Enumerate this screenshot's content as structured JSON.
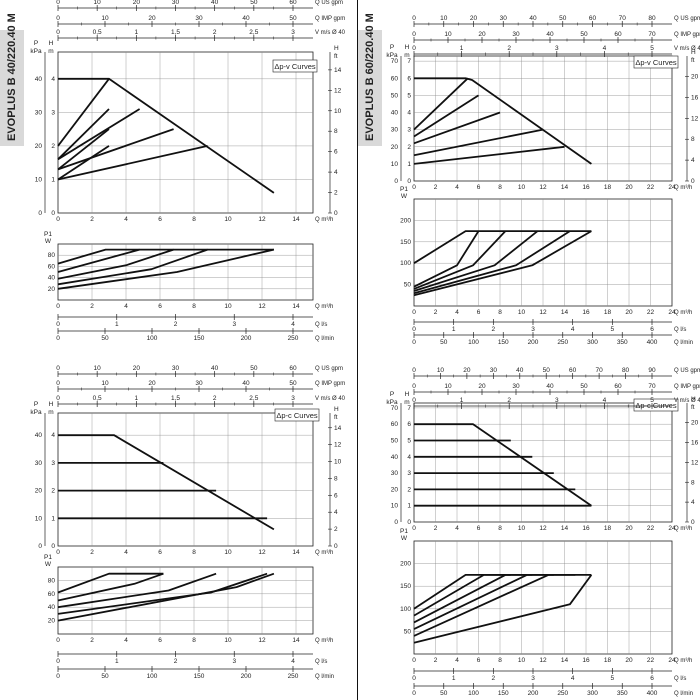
{
  "side_labels": {
    "left": "EVOPLUS B 40/220.40 M",
    "right": "EVOPLUS B 60/220.40 M"
  },
  "chart_data": [
    {
      "type": "line",
      "panel": "top-left",
      "legend": "Δp-v Curves",
      "scales": [
        {
          "label": "Q US gpm",
          "ticks": [
            "0",
            "10",
            "20",
            "30",
            "40",
            "50",
            "60"
          ]
        },
        {
          "label": "Q IMP gpm",
          "ticks": [
            "0",
            "10",
            "20",
            "30",
            "40",
            "50"
          ]
        },
        {
          "label": "V m/s Ø 40",
          "ticks": [
            "0",
            "0,5",
            "1",
            "1,5",
            "2",
            "2,5",
            "3"
          ]
        }
      ],
      "head": {
        "ylabel_left": "P kPa",
        "ylabel_mid": "H m",
        "ylabel_right": "H ft",
        "xlabel": "Q m³/h",
        "x_ticks": [
          "0",
          "2",
          "4",
          "6",
          "8",
          "10",
          "12",
          "14"
        ],
        "y_left_ticks": [
          "0",
          "10",
          "20",
          "30",
          "40"
        ],
        "y_mid_ticks": [
          "0",
          "1",
          "2",
          "3",
          "4"
        ],
        "y_right_ticks": [
          "0",
          "2",
          "4",
          "6",
          "8",
          "10",
          "12",
          "14"
        ],
        "xlim": [
          0,
          15
        ],
        "ylim": [
          0,
          4.8
        ],
        "series": [
          {
            "x": [
              0,
              3.0
            ],
            "y": [
              1.0,
              2.0
            ]
          },
          {
            "x": [
              0,
              3.0
            ],
            "y": [
              1.3,
              2.5
            ]
          },
          {
            "x": [
              0,
              3.0
            ],
            "y": [
              1.6,
              3.1
            ]
          },
          {
            "x": [
              0,
              3.0
            ],
            "y": [
              2.0,
              4.0
            ]
          },
          {
            "x": [
              0,
              8.8
            ],
            "y": [
              1.0,
              2.0
            ]
          },
          {
            "x": [
              0,
              6.8
            ],
            "y": [
              1.3,
              2.5
            ]
          },
          {
            "x": [
              0,
              4.8
            ],
            "y": [
              1.6,
              3.1
            ]
          },
          {
            "x": [
              0,
              3.0,
              12.7
            ],
            "y": [
              4.0,
              4.0,
              0.6
            ]
          }
        ]
      },
      "power": {
        "ylabel": "P1 W",
        "xlabel": "Q m³/h",
        "x_ticks": [
          "0",
          "2",
          "4",
          "6",
          "8",
          "10",
          "12",
          "14"
        ],
        "y_ticks": [
          "20",
          "40",
          "60",
          "80"
        ],
        "xlim": [
          0,
          15
        ],
        "ylim": [
          0,
          100
        ],
        "series": [
          {
            "x": [
              0,
              2.8,
              12.7
            ],
            "y": [
              65,
              90,
              90
            ]
          },
          {
            "x": [
              0,
              3.0,
              4.8
            ],
            "y": [
              50,
              75,
              90
            ]
          },
          {
            "x": [
              0,
              4.0,
              6.8
            ],
            "y": [
              38,
              62,
              90
            ]
          },
          {
            "x": [
              0,
              5.5,
              8.8
            ],
            "y": [
              28,
              55,
              90
            ]
          },
          {
            "x": [
              0,
              7.0,
              12.7
            ],
            "y": [
              20,
              50,
              90
            ]
          }
        ]
      },
      "bottom_scales": [
        {
          "label": "Q l/s",
          "ticks": [
            "0",
            "1",
            "2",
            "3",
            "4"
          ]
        },
        {
          "label": "Q l/min",
          "ticks": [
            "0",
            "50",
            "100",
            "150",
            "200",
            "250"
          ]
        }
      ]
    },
    {
      "type": "line",
      "panel": "top-right",
      "legend": "Δp-v Curves",
      "scales": [
        {
          "label": "Q US gpm",
          "ticks": [
            "0",
            "10",
            "20",
            "30",
            "40",
            "50",
            "60",
            "70",
            "80"
          ]
        },
        {
          "label": "Q IMP gpm",
          "ticks": [
            "0",
            "10",
            "20",
            "30",
            "40",
            "50",
            "60",
            "70"
          ]
        },
        {
          "label": "V m/s Ø 40",
          "ticks": [
            "0",
            "1",
            "2",
            "3",
            "4",
            "5"
          ]
        }
      ],
      "head": {
        "ylabel_left": "P kPa",
        "ylabel_mid": "H m",
        "ylabel_right": "H ft",
        "xlabel": "Q m³/h",
        "x_ticks": [
          "0",
          "2",
          "4",
          "6",
          "8",
          "10",
          "12",
          "14",
          "16",
          "18",
          "20",
          "22",
          "24"
        ],
        "y_left_ticks": [
          "0",
          "10",
          "20",
          "30",
          "40",
          "50",
          "60",
          "70"
        ],
        "y_mid_ticks": [
          "0",
          "1",
          "2",
          "3",
          "4",
          "5",
          "6",
          "7"
        ],
        "y_right_ticks": [
          "0",
          "4",
          "8",
          "12",
          "16",
          "20"
        ],
        "xlim": [
          0,
          24
        ],
        "ylim": [
          0,
          7.3
        ],
        "series": [
          {
            "x": [
              0,
              14
            ],
            "y": [
              1.0,
              2.0
            ]
          },
          {
            "x": [
              0,
              12
            ],
            "y": [
              1.5,
              3.0
            ]
          },
          {
            "x": [
              0,
              8
            ],
            "y": [
              2.2,
              4.0
            ]
          },
          {
            "x": [
              0,
              6
            ],
            "y": [
              2.6,
              5.0
            ]
          },
          {
            "x": [
              0,
              5
            ],
            "y": [
              3.0,
              6.0
            ]
          },
          {
            "x": [
              0,
              4.8,
              5.4,
              16.5
            ],
            "y": [
              6.0,
              6.0,
              5.9,
              1.0
            ]
          }
        ]
      },
      "power": {
        "ylabel": "P1 W",
        "xlabel": "Q m³/h",
        "x_ticks": [
          "0",
          "2",
          "4",
          "6",
          "8",
          "10",
          "12",
          "14",
          "16",
          "18",
          "20",
          "22",
          "24"
        ],
        "y_ticks": [
          "50",
          "100",
          "150",
          "200"
        ],
        "xlim": [
          0,
          24
        ],
        "ylim": [
          0,
          250
        ],
        "series": [
          {
            "x": [
              0,
              4.8,
              16.5
            ],
            "y": [
              100,
              175,
              175
            ]
          },
          {
            "x": [
              0,
              4.0,
              6.0
            ],
            "y": [
              45,
              95,
              175
            ]
          },
          {
            "x": [
              0,
              5.5,
              8.5
            ],
            "y": [
              40,
              95,
              175
            ]
          },
          {
            "x": [
              0,
              7.5,
              11.5
            ],
            "y": [
              35,
              95,
              175
            ]
          },
          {
            "x": [
              0,
              9.5,
              14.5
            ],
            "y": [
              30,
              95,
              175
            ]
          },
          {
            "x": [
              0,
              11,
              16.5
            ],
            "y": [
              25,
              95,
              175
            ]
          }
        ]
      },
      "bottom_scales": [
        {
          "label": "Q l/s",
          "ticks": [
            "0",
            "1",
            "2",
            "3",
            "4",
            "5",
            "6"
          ]
        },
        {
          "label": "Q l/min",
          "ticks": [
            "0",
            "50",
            "100",
            "150",
            "200",
            "250",
            "300",
            "350",
            "400"
          ]
        }
      ]
    },
    {
      "type": "line",
      "panel": "bottom-left",
      "legend": "Δp-c Curves",
      "scales": [
        {
          "label": "Q US gpm",
          "ticks": [
            "0",
            "10",
            "20",
            "30",
            "40",
            "50",
            "60"
          ]
        },
        {
          "label": "Q IMP gpm",
          "ticks": [
            "0",
            "10",
            "20",
            "30",
            "40",
            "50"
          ]
        },
        {
          "label": "V m/s Ø 40",
          "ticks": [
            "0",
            "0,5",
            "1",
            "1,5",
            "2",
            "2,5",
            "3"
          ]
        }
      ],
      "head": {
        "ylabel_left": "P kPa",
        "ylabel_mid": "H m",
        "ylabel_right": "H ft",
        "xlabel": "Q m³/h",
        "x_ticks": [
          "0",
          "2",
          "4",
          "6",
          "8",
          "10",
          "12",
          "14"
        ],
        "y_left_ticks": [
          "0",
          "10",
          "20",
          "30",
          "40"
        ],
        "y_mid_ticks": [
          "0",
          "1",
          "2",
          "3",
          "4"
        ],
        "y_right_ticks": [
          "0",
          "2",
          "4",
          "6",
          "8",
          "10",
          "12",
          "14"
        ],
        "xlim": [
          0,
          15
        ],
        "ylim": [
          0,
          4.8
        ],
        "series": [
          {
            "x": [
              0,
              12.3
            ],
            "y": [
              1.0,
              1.0
            ]
          },
          {
            "x": [
              0,
              9.3
            ],
            "y": [
              2.0,
              2.0
            ]
          },
          {
            "x": [
              0,
              6.2
            ],
            "y": [
              3.0,
              3.0
            ]
          },
          {
            "x": [
              0,
              3.3,
              12.7
            ],
            "y": [
              4.0,
              4.0,
              0.6
            ]
          }
        ]
      },
      "power": {
        "ylabel": "P1 W",
        "xlabel": "Q m³/h",
        "x_ticks": [
          "0",
          "2",
          "4",
          "6",
          "8",
          "10",
          "12",
          "14"
        ],
        "y_ticks": [
          "20",
          "40",
          "60",
          "80"
        ],
        "xlim": [
          0,
          15
        ],
        "ylim": [
          0,
          100
        ],
        "series": [
          {
            "x": [
              0,
              3.0,
              6.2
            ],
            "y": [
              62,
              90,
              90
            ]
          },
          {
            "x": [
              0,
              4.5,
              6.2
            ],
            "y": [
              50,
              75,
              90
            ]
          },
          {
            "x": [
              0,
              6.5,
              9.3
            ],
            "y": [
              40,
              65,
              90
            ]
          },
          {
            "x": [
              0,
              9.0,
              12.3
            ],
            "y": [
              30,
              62,
              90
            ]
          },
          {
            "x": [
              0,
              10.5,
              12.7
            ],
            "y": [
              20,
              70,
              90
            ]
          }
        ]
      },
      "bottom_scales": [
        {
          "label": "Q l/s",
          "ticks": [
            "0",
            "1",
            "2",
            "3",
            "4"
          ]
        },
        {
          "label": "Q l/min",
          "ticks": [
            "0",
            "50",
            "100",
            "150",
            "200",
            "250"
          ]
        }
      ]
    },
    {
      "type": "line",
      "panel": "bottom-right",
      "legend": "Δp-c Curves",
      "scales": [
        {
          "label": "Q US gpm",
          "ticks": [
            "0",
            "10",
            "20",
            "30",
            "40",
            "50",
            "60",
            "70",
            "80",
            "90"
          ]
        },
        {
          "label": "Q IMP gpm",
          "ticks": [
            "0",
            "10",
            "20",
            "30",
            "40",
            "50",
            "60",
            "70"
          ]
        },
        {
          "label": "V m/s Ø 40",
          "ticks": [
            "0",
            "1",
            "2",
            "3",
            "4",
            "5"
          ]
        }
      ],
      "head": {
        "ylabel_left": "P kPa",
        "ylabel_mid": "H m",
        "ylabel_right": "H ft",
        "xlabel": "Q m³/h",
        "x_ticks": [
          "0",
          "2",
          "4",
          "6",
          "8",
          "10",
          "12",
          "14",
          "16",
          "18",
          "20",
          "22",
          "24"
        ],
        "y_left_ticks": [
          "0",
          "10",
          "20",
          "30",
          "40",
          "50",
          "60",
          "70"
        ],
        "y_mid_ticks": [
          "0",
          "1",
          "2",
          "3",
          "4",
          "5",
          "6",
          "7"
        ],
        "y_right_ticks": [
          "0",
          "4",
          "8",
          "12",
          "16",
          "20"
        ],
        "xlim": [
          0,
          24
        ],
        "ylim": [
          0,
          7.3
        ],
        "series": [
          {
            "x": [
              0,
              16.5
            ],
            "y": [
              1.0,
              1.0
            ]
          },
          {
            "x": [
              0,
              15
            ],
            "y": [
              2.0,
              2.0
            ]
          },
          {
            "x": [
              0,
              13
            ],
            "y": [
              3.0,
              3.0
            ]
          },
          {
            "x": [
              0,
              11
            ],
            "y": [
              4.0,
              4.0
            ]
          },
          {
            "x": [
              0,
              9
            ],
            "y": [
              5.0,
              5.0
            ]
          },
          {
            "x": [
              0,
              5.5,
              16.5
            ],
            "y": [
              6.0,
              6.0,
              1.0
            ]
          }
        ]
      },
      "power": {
        "ylabel": "P1 W",
        "xlabel": "Q m³/h",
        "x_ticks": [
          "0",
          "2",
          "4",
          "6",
          "8",
          "10",
          "12",
          "14",
          "16",
          "18",
          "20",
          "22",
          "24"
        ],
        "y_ticks": [
          "50",
          "100",
          "150",
          "200"
        ],
        "xlim": [
          0,
          24
        ],
        "ylim": [
          0,
          250
        ],
        "series": [
          {
            "x": [
              0,
              4.8,
              9.0
            ],
            "y": [
              100,
              175,
              175
            ]
          },
          {
            "x": [
              0,
              6.5,
              11.0
            ],
            "y": [
              85,
              175,
              175
            ]
          },
          {
            "x": [
              0,
              8.5,
              13.0
            ],
            "y": [
              70,
              175,
              175
            ]
          },
          {
            "x": [
              0,
              10.5,
              15.0
            ],
            "y": [
              55,
              175,
              175
            ]
          },
          {
            "x": [
              0,
              12.5,
              16.5
            ],
            "y": [
              40,
              175,
              175
            ]
          },
          {
            "x": [
              0,
              14.5,
              16.5
            ],
            "y": [
              25,
              110,
              175
            ]
          }
        ]
      },
      "bottom_scales": [
        {
          "label": "Q l/s",
          "ticks": [
            "0",
            "1",
            "2",
            "3",
            "4",
            "5",
            "6"
          ]
        },
        {
          "label": "Q l/min",
          "ticks": [
            "0",
            "50",
            "100",
            "150",
            "200",
            "250",
            "300",
            "350",
            "400"
          ]
        }
      ]
    }
  ]
}
